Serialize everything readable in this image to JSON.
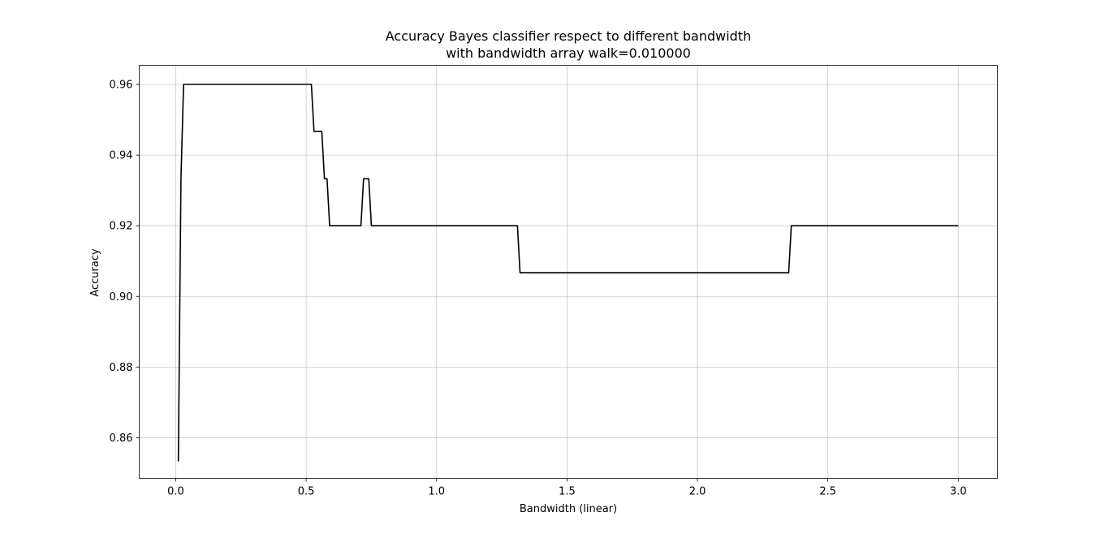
{
  "chart_data": {
    "type": "line",
    "title": "Accuracy Bayes classifier respect to different bandwidth",
    "subtitle": "with bandwidth array walk=0.010000",
    "xlabel": "Bandwidth (linear)",
    "ylabel": "Accuracy",
    "xlim": [
      -0.14,
      3.15
    ],
    "ylim": [
      0.8485,
      0.9654
    ],
    "xticks": [
      0.0,
      0.5,
      1.0,
      1.5,
      2.0,
      2.5,
      3.0
    ],
    "xtick_labels": [
      "0.0",
      "0.5",
      "1.0",
      "1.5",
      "2.0",
      "2.5",
      "3.0"
    ],
    "yticks": [
      0.86,
      0.88,
      0.9,
      0.92,
      0.94,
      0.96
    ],
    "ytick_labels": [
      "0.86",
      "0.88",
      "0.90",
      "0.92",
      "0.94",
      "0.96"
    ],
    "grid": true,
    "line_color": "#000000",
    "series": [
      {
        "x": [
          0.01,
          0.02,
          0.03,
          0.52,
          0.53,
          0.56,
          0.57,
          0.58,
          0.59,
          0.71,
          0.72,
          0.74,
          0.75,
          1.31,
          1.32,
          2.35,
          2.36,
          3.0
        ],
        "values": [
          0.8533,
          0.9333,
          0.96,
          0.96,
          0.9467,
          0.9467,
          0.9333,
          0.9333,
          0.92,
          0.92,
          0.9333,
          0.9333,
          0.92,
          0.92,
          0.9067,
          0.9067,
          0.92,
          0.92
        ]
      }
    ]
  }
}
